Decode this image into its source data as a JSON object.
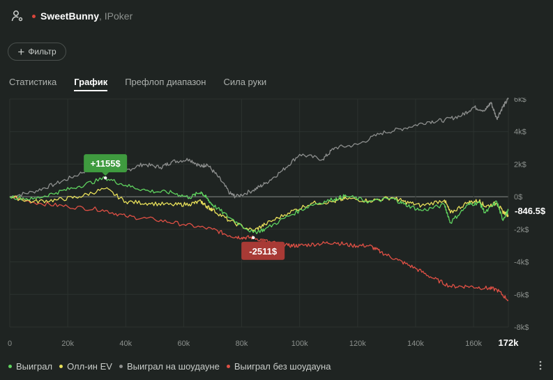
{
  "header": {
    "player_name": "SweetBunny",
    "room": ", IPoker",
    "status_color": "#d9453b"
  },
  "filter": {
    "label": "Фильтр",
    "icon": "plus-icon"
  },
  "tabs": [
    {
      "label": "Статистика",
      "active": false
    },
    {
      "label": "График",
      "active": true
    },
    {
      "label": "Префлоп диапазон",
      "active": false
    },
    {
      "label": "Сила руки",
      "active": false
    }
  ],
  "chart_data": {
    "type": "line",
    "x_ticks": [
      "0",
      "20k",
      "40k",
      "60k",
      "80k",
      "100k",
      "120k",
      "140k",
      "160k"
    ],
    "x_end_label": "172k",
    "x_range": [
      0,
      172000
    ],
    "y_ticks": [
      "6k$",
      "4k$",
      "2k$",
      "0$",
      "-2k$",
      "-4k$",
      "-6k$",
      "-8k$"
    ],
    "y_range": [
      -8000,
      6000
    ],
    "grid": true,
    "legend_position": "bottom",
    "series": [
      {
        "name": "Выиграл",
        "color": "#5fd35f",
        "points": [
          [
            0,
            0
          ],
          [
            8000,
            -150
          ],
          [
            16000,
            250
          ],
          [
            24000,
            650
          ],
          [
            33000,
            1155
          ],
          [
            40000,
            700
          ],
          [
            48000,
            350
          ],
          [
            56000,
            250
          ],
          [
            62000,
            -50
          ],
          [
            66000,
            300
          ],
          [
            68000,
            -100
          ],
          [
            70000,
            -500
          ],
          [
            76000,
            -1300
          ],
          [
            84000,
            -2200
          ],
          [
            88000,
            -2000
          ],
          [
            96000,
            -1200
          ],
          [
            104000,
            -500
          ],
          [
            112000,
            -150
          ],
          [
            116000,
            50
          ],
          [
            124000,
            -300
          ],
          [
            132000,
            -100
          ],
          [
            136000,
            -450
          ],
          [
            142000,
            -850
          ],
          [
            150000,
            -500
          ],
          [
            152000,
            -1600
          ],
          [
            158000,
            -500
          ],
          [
            162000,
            -350
          ],
          [
            164000,
            -1000
          ],
          [
            168000,
            -300
          ],
          [
            170000,
            -1400
          ],
          [
            172000,
            -846.5
          ]
        ]
      },
      {
        "name": "Олл-ин EV",
        "color": "#e8e05a",
        "points": [
          [
            0,
            0
          ],
          [
            8000,
            -300
          ],
          [
            16000,
            -200
          ],
          [
            24000,
            0
          ],
          [
            33000,
            500
          ],
          [
            40000,
            -300
          ],
          [
            48000,
            -400
          ],
          [
            56000,
            -500
          ],
          [
            62000,
            -450
          ],
          [
            66000,
            -300
          ],
          [
            68000,
            -600
          ],
          [
            70000,
            -800
          ],
          [
            76000,
            -1500
          ],
          [
            84000,
            -2100
          ],
          [
            88000,
            -1700
          ],
          [
            96000,
            -1000
          ],
          [
            104000,
            -400
          ],
          [
            112000,
            -300
          ],
          [
            116000,
            -100
          ],
          [
            124000,
            -250
          ],
          [
            132000,
            -50
          ],
          [
            136000,
            -300
          ],
          [
            142000,
            -550
          ],
          [
            150000,
            -200
          ],
          [
            152000,
            -1000
          ],
          [
            158000,
            -350
          ],
          [
            162000,
            -250
          ],
          [
            164000,
            -600
          ],
          [
            168000,
            -400
          ],
          [
            170000,
            -900
          ],
          [
            172000,
            -1150
          ]
        ]
      },
      {
        "name": "Выиграл на шоудауне",
        "color": "#8d8f8e",
        "points": [
          [
            0,
            0
          ],
          [
            8000,
            300
          ],
          [
            16000,
            800
          ],
          [
            24000,
            1400
          ],
          [
            30000,
            2000
          ],
          [
            35000,
            2200
          ],
          [
            40000,
            1600
          ],
          [
            46000,
            2000
          ],
          [
            52000,
            1800
          ],
          [
            56000,
            2150
          ],
          [
            62000,
            2300
          ],
          [
            66000,
            1850
          ],
          [
            68000,
            2000
          ],
          [
            72000,
            1200
          ],
          [
            76000,
            200
          ],
          [
            78000,
            0
          ],
          [
            84000,
            400
          ],
          [
            88000,
            800
          ],
          [
            94000,
            1600
          ],
          [
            100000,
            2600
          ],
          [
            108000,
            2300
          ],
          [
            112000,
            3000
          ],
          [
            120000,
            3200
          ],
          [
            128000,
            3900
          ],
          [
            136000,
            4200
          ],
          [
            144000,
            4600
          ],
          [
            150000,
            4700
          ],
          [
            156000,
            5000
          ],
          [
            160000,
            5500
          ],
          [
            164000,
            5300
          ],
          [
            166000,
            5800
          ],
          [
            168000,
            4800
          ],
          [
            170000,
            5500
          ],
          [
            172000,
            6000
          ]
        ]
      },
      {
        "name": "Выиграл без шоудауна",
        "color": "#e05045",
        "points": [
          [
            0,
            0
          ],
          [
            10000,
            -400
          ],
          [
            20000,
            -600
          ],
          [
            32000,
            -800
          ],
          [
            40000,
            -1200
          ],
          [
            50000,
            -1400
          ],
          [
            60000,
            -1700
          ],
          [
            70000,
            -2000
          ],
          [
            76000,
            -2400
          ],
          [
            80000,
            -2500
          ],
          [
            84000,
            -2511
          ],
          [
            90000,
            -2800
          ],
          [
            96000,
            -3000
          ],
          [
            100000,
            -3000
          ],
          [
            106000,
            -2900
          ],
          [
            112000,
            -2800
          ],
          [
            118000,
            -3000
          ],
          [
            124000,
            -3000
          ],
          [
            128000,
            -3400
          ],
          [
            134000,
            -3900
          ],
          [
            140000,
            -4400
          ],
          [
            146000,
            -5000
          ],
          [
            152000,
            -5500
          ],
          [
            158000,
            -5500
          ],
          [
            164000,
            -5600
          ],
          [
            168000,
            -5700
          ],
          [
            172000,
            -6350
          ]
        ]
      }
    ],
    "annotations": [
      {
        "text": "+1155$",
        "color": "#3f9b3f",
        "x": 33000,
        "y": 1155,
        "placement": "above"
      },
      {
        "text": "-2511$",
        "color": "#a83a35",
        "x": 84000,
        "y": -2511,
        "placement": "below"
      }
    ],
    "end_value": "-846.5$"
  },
  "legend": [
    {
      "label": "Выиграл",
      "color": "#5fd35f"
    },
    {
      "label": "Олл-ин EV",
      "color": "#e8e05a"
    },
    {
      "label": "Выиграл на шоудауне",
      "color": "#8d8f8e"
    },
    {
      "label": "Выиграл без шоудауна",
      "color": "#e05045"
    }
  ]
}
